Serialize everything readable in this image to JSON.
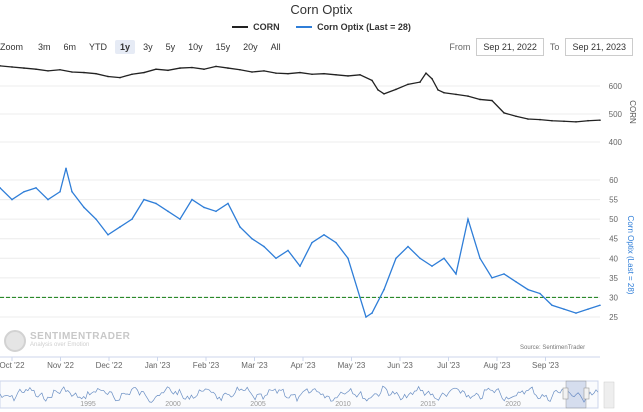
{
  "title": "Corn Optix",
  "legend": [
    {
      "label": "CORN",
      "color": "#222222"
    },
    {
      "label": "Corn Optix (Last = 28)",
      "color": "#2f7ed8"
    }
  ],
  "zoom": {
    "label": "Zoom",
    "buttons": [
      "3m",
      "6m",
      "YTD",
      "1y",
      "3y",
      "5y",
      "10y",
      "15y",
      "20y",
      "All"
    ],
    "active": "1y"
  },
  "range": {
    "from_label": "From",
    "from": "Sep 21, 2022",
    "to_label": "To",
    "to": "Sep 21, 2023"
  },
  "watermark": {
    "brand": "SENTIMENTRADER",
    "sub": "Analysis over Emotion"
  },
  "source": "Source: SentimenTrader",
  "chart_data": [
    {
      "type": "line",
      "x_ticks": [
        "Oct '22",
        "Nov '22",
        "Dec '22",
        "Jan '23",
        "Feb '23",
        "Mar '23",
        "Apr '23",
        "May '23",
        "Jun '23",
        "Jul '23",
        "Aug '23",
        "Sep '23"
      ],
      "ylabel": "CORN",
      "ylim": [
        400,
        700
      ],
      "y_ticks": [
        400,
        500,
        600
      ],
      "series": [
        {
          "name": "CORN",
          "color": "#222222",
          "x": [
            0,
            0.02,
            0.04,
            0.06,
            0.08,
            0.1,
            0.12,
            0.14,
            0.16,
            0.18,
            0.2,
            0.22,
            0.24,
            0.26,
            0.28,
            0.3,
            0.32,
            0.34,
            0.36,
            0.38,
            0.4,
            0.42,
            0.44,
            0.46,
            0.48,
            0.5,
            0.52,
            0.54,
            0.56,
            0.58,
            0.6,
            0.62,
            0.63,
            0.64,
            0.66,
            0.68,
            0.7,
            0.71,
            0.72,
            0.73,
            0.74,
            0.76,
            0.78,
            0.8,
            0.82,
            0.84,
            0.86,
            0.88,
            0.9,
            0.92,
            0.94,
            0.96,
            0.98,
            1.0
          ],
          "values": [
            672,
            668,
            664,
            660,
            654,
            658,
            650,
            648,
            644,
            634,
            630,
            642,
            648,
            660,
            656,
            664,
            666,
            660,
            670,
            664,
            658,
            650,
            654,
            646,
            644,
            648,
            642,
            644,
            640,
            636,
            640,
            620,
            586,
            572,
            588,
            606,
            614,
            646,
            626,
            586,
            576,
            570,
            564,
            552,
            548,
            504,
            492,
            482,
            480,
            476,
            474,
            472,
            476,
            478
          ]
        }
      ]
    },
    {
      "type": "line",
      "ylabel": "Corn Optix (Last = 28)",
      "ylim": [
        20,
        65
      ],
      "y_ticks": [
        25,
        30,
        35,
        40,
        45,
        50,
        55,
        60
      ],
      "reference_line": {
        "value": 30,
        "color": "#2a8a2a",
        "style": "dashed"
      },
      "series": [
        {
          "name": "Corn Optix (Last = 28)",
          "color": "#2f7ed8",
          "x": [
            0,
            0.02,
            0.04,
            0.06,
            0.08,
            0.1,
            0.11,
            0.12,
            0.14,
            0.16,
            0.18,
            0.2,
            0.22,
            0.24,
            0.26,
            0.28,
            0.3,
            0.32,
            0.34,
            0.36,
            0.38,
            0.4,
            0.42,
            0.44,
            0.46,
            0.48,
            0.5,
            0.52,
            0.54,
            0.56,
            0.58,
            0.6,
            0.61,
            0.62,
            0.64,
            0.66,
            0.68,
            0.7,
            0.72,
            0.74,
            0.76,
            0.78,
            0.8,
            0.82,
            0.84,
            0.86,
            0.88,
            0.9,
            0.92,
            0.94,
            0.96,
            0.98,
            1.0
          ],
          "values": [
            58,
            55,
            57,
            58,
            55,
            57,
            63,
            57,
            53,
            50,
            46,
            48,
            50,
            55,
            54,
            52,
            50,
            55,
            53,
            52,
            54,
            48,
            45,
            43,
            40,
            42,
            38,
            44,
            46,
            44,
            40,
            30,
            25,
            26,
            32,
            40,
            43,
            40,
            38,
            40,
            36,
            50,
            40,
            35,
            36,
            34,
            32,
            31,
            28,
            27,
            26,
            27,
            28
          ]
        }
      ]
    },
    {
      "type": "line",
      "role": "navigator",
      "x_ticks": [
        "1995",
        "2000",
        "2005",
        "2010",
        "2015",
        "2020"
      ]
    }
  ]
}
